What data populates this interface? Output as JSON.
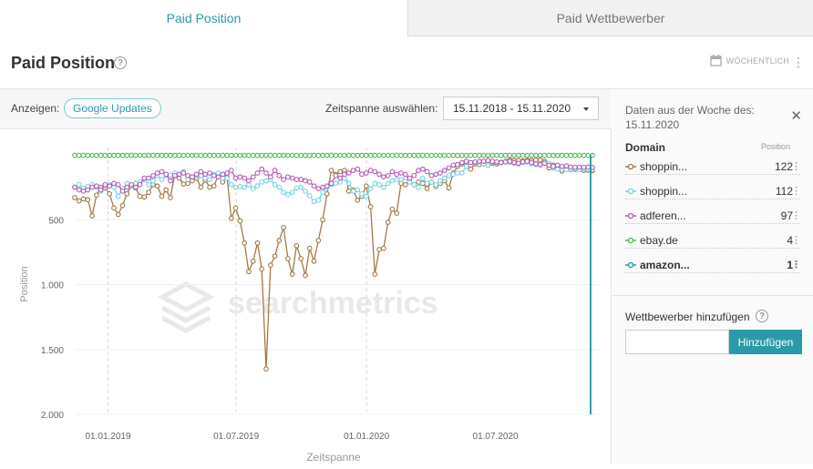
{
  "tabs": [
    {
      "label": "Paid Position",
      "active": true
    },
    {
      "label": "Paid Wettbewerber",
      "active": false
    }
  ],
  "header": {
    "title": "Paid Position",
    "help": "?",
    "interval_label": "WÖCHENTLICH",
    "menu": "⋮"
  },
  "filters": {
    "show_label": "Anzeigen:",
    "show_pill": "Google Updates",
    "range_label": "Zeitspanne auswählen:",
    "range_value": "15.11.2018 - 15.11.2020"
  },
  "chart": {
    "watermark": "searchmetrics",
    "ylabel": "Position",
    "xlabel": "Zeitspanne",
    "ytick_labels": [
      "500",
      "1.000",
      "1.500",
      "2.000"
    ],
    "xtick_labels": [
      "01.01.2019",
      "01.07.2019",
      "01.01.2020",
      "01.07.2020"
    ]
  },
  "chart_data": {
    "type": "line",
    "title": "",
    "xlabel": "Zeitspanne",
    "ylabel": "Position",
    "y_inverted": true,
    "ylim": [
      0,
      2000
    ],
    "yticks": [
      500,
      1000,
      1500,
      2000
    ],
    "xrange": [
      "2018-11-15",
      "2020-11-15"
    ],
    "xticks": [
      "2019-01-01",
      "2019-07-01",
      "2020-01-01",
      "2020-07-01"
    ],
    "frequency": "weekly",
    "google_updates_x": [
      "2019-01-01",
      "2019-07-01",
      "2020-01-01"
    ],
    "series": [
      {
        "name": "shoppin…",
        "color": "#a07a46",
        "values": [
          330,
          355,
          340,
          345,
          470,
          310,
          250,
          255,
          300,
          410,
          460,
          390,
          300,
          240,
          255,
          320,
          325,
          290,
          230,
          240,
          320,
          270,
          330,
          150,
          180,
          225,
          220,
          200,
          180,
          250,
          195,
          250,
          240,
          160,
          210,
          170,
          490,
          410,
          510,
          680,
          900,
          820,
          680,
          880,
          1650,
          850,
          780,
          660,
          560,
          800,
          920,
          700,
          800,
          930,
          720,
          820,
          660,
          500,
          300,
          120,
          150,
          130,
          120,
          280,
          270,
          350,
          320,
          240,
          400,
          920,
          730,
          720,
          520,
          420,
          450,
          220,
          230,
          200,
          230,
          210,
          220,
          260,
          210,
          245,
          220,
          200,
          255,
          140,
          90,
          70,
          60,
          110,
          70,
          75,
          70,
          80,
          65,
          70,
          60,
          50,
          40,
          45,
          45,
          48,
          40,
          45,
          40,
          40,
          50,
          100,
          80,
          105,
          125,
          110,
          115,
          112,
          113,
          120,
          118,
          122
        ]
      },
      {
        "name": "shoppin…",
        "color": "#76d3e3",
        "values": [
          250,
          230,
          260,
          245,
          230,
          250,
          280,
          240,
          230,
          250,
          320,
          260,
          220,
          240,
          220,
          210,
          190,
          230,
          200,
          160,
          190,
          160,
          155,
          140,
          155,
          130,
          190,
          170,
          160,
          160,
          180,
          190,
          150,
          140,
          180,
          180,
          230,
          250,
          245,
          250,
          230,
          260,
          240,
          210,
          200,
          190,
          230,
          250,
          290,
          305,
          290,
          255,
          250,
          280,
          315,
          360,
          350,
          290,
          250,
          230,
          220,
          210,
          180,
          220,
          280,
          270,
          300,
          320,
          260,
          220,
          230,
          250,
          220,
          200,
          190,
          190,
          180,
          210,
          230,
          250,
          180,
          220,
          210,
          230,
          200,
          180,
          160,
          150,
          140,
          140,
          90,
          60,
          60,
          55,
          70,
          80,
          55,
          60,
          55,
          50,
          60,
          65,
          70,
          60,
          55,
          70,
          75,
          80,
          60,
          65,
          100,
          110,
          110,
          115,
          112,
          108,
          112,
          110,
          112,
          112
        ]
      },
      {
        "name": "adferen…",
        "color": "#b25cb5",
        "values": [
          250,
          270,
          280,
          270,
          250,
          240,
          270,
          230,
          240,
          220,
          230,
          280,
          250,
          230,
          250,
          230,
          180,
          180,
          160,
          140,
          130,
          150,
          200,
          160,
          150,
          140,
          160,
          170,
          150,
          130,
          150,
          140,
          160,
          170,
          150,
          140,
          120,
          180,
          170,
          180,
          200,
          170,
          140,
          110,
          140,
          170,
          120,
          160,
          190,
          170,
          180,
          190,
          190,
          200,
          210,
          240,
          260,
          250,
          240,
          220,
          160,
          180,
          150,
          140,
          120,
          110,
          150,
          140,
          120,
          130,
          150,
          170,
          160,
          130,
          150,
          140,
          150,
          180,
          160,
          120,
          110,
          130,
          160,
          150,
          140,
          120,
          100,
          80,
          75,
          60,
          50,
          60,
          55,
          50,
          50,
          45,
          50,
          55,
          60,
          55,
          50,
          60,
          65,
          55,
          50,
          60,
          70,
          75,
          65,
          80,
          90,
          80,
          90,
          85,
          95,
          97,
          95,
          97,
          95,
          97
        ]
      },
      {
        "name": "ebay.de",
        "color": "#52b553",
        "values": [
          4,
          4,
          4,
          4,
          4,
          4,
          4,
          4,
          4,
          4,
          4,
          4,
          4,
          4,
          4,
          4,
          4,
          4,
          4,
          4,
          4,
          4,
          4,
          4,
          4,
          4,
          4,
          4,
          4,
          4,
          4,
          4,
          4,
          4,
          4,
          4,
          4,
          4,
          4,
          4,
          4,
          4,
          4,
          4,
          4,
          4,
          4,
          4,
          4,
          4,
          4,
          4,
          4,
          4,
          4,
          4,
          4,
          4,
          4,
          4,
          4,
          4,
          4,
          4,
          4,
          4,
          4,
          4,
          4,
          4,
          4,
          4,
          4,
          4,
          4,
          4,
          4,
          4,
          4,
          4,
          4,
          4,
          4,
          4,
          4,
          4,
          4,
          4,
          4,
          4,
          4,
          4,
          4,
          4,
          4,
          4,
          4,
          4,
          4,
          4,
          4,
          4,
          4,
          4,
          4,
          4,
          4,
          4,
          4,
          4,
          4,
          4,
          4,
          4,
          4,
          4,
          4,
          4,
          4,
          4
        ]
      },
      {
        "name": "amazon…",
        "color": "#1e9aa0",
        "values": [
          null,
          null,
          null,
          null,
          null,
          null,
          null,
          null,
          null,
          null,
          null,
          null,
          null,
          null,
          null,
          null,
          null,
          null,
          null,
          null,
          null,
          null,
          null,
          null,
          null,
          null,
          null,
          null,
          null,
          null,
          null,
          null,
          null,
          null,
          null,
          null,
          null,
          null,
          null,
          null,
          null,
          null,
          null,
          null,
          null,
          null,
          null,
          null,
          null,
          null,
          null,
          null,
          null,
          null,
          null,
          null,
          null,
          null,
          null,
          null,
          null,
          null,
          null,
          null,
          null,
          null,
          null,
          null,
          null,
          null,
          null,
          null,
          null,
          null,
          null,
          null,
          null,
          null,
          null,
          null,
          null,
          null,
          null,
          null,
          null,
          null,
          null,
          null,
          null,
          null,
          null,
          null,
          null,
          null,
          null,
          null,
          null,
          null,
          null,
          null,
          null,
          null,
          null,
          null,
          null,
          null,
          null,
          null,
          null,
          null,
          null,
          null,
          null,
          null,
          null,
          null,
          null,
          null,
          null,
          1
        ]
      }
    ]
  },
  "sidebar": {
    "week_label": "Daten aus der Woche des:",
    "week_date": "15.11.2020",
    "close": "✕",
    "domain_header": "Domain",
    "position_header": "Position",
    "rows": [
      {
        "domain": "shoppin...",
        "position": "122",
        "color": "#a07a46",
        "bold": false
      },
      {
        "domain": "shoppin...",
        "position": "112",
        "color": "#76d3e3",
        "bold": false
      },
      {
        "domain": "adferen...",
        "position": "97",
        "color": "#b25cb5",
        "bold": false
      },
      {
        "domain": "ebay.de",
        "position": "4",
        "color": "#52b553",
        "bold": false
      },
      {
        "domain": "amazon...",
        "position": "1",
        "color": "#1e9aa0",
        "bold": true
      }
    ],
    "add_label": "Wettbewerber hinzufügen",
    "add_placeholder": "",
    "add_button": "Hinzufügen",
    "row_menu": "⋮"
  }
}
